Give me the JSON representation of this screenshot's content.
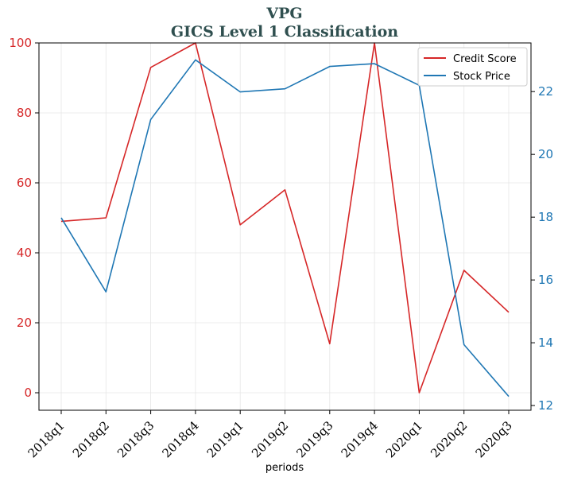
{
  "chart_data": {
    "type": "line",
    "title": "VPG",
    "subtitle": "GICS Level 1 Classification",
    "xlabel": "periods",
    "ylabel_left": "",
    "ylabel_right": "",
    "categories": [
      "2018q1",
      "2018q2",
      "2018q3",
      "2018q4",
      "2019q1",
      "2019q2",
      "2019q3",
      "2019q4",
      "2020q1",
      "2020q2",
      "2020q3"
    ],
    "y_left": {
      "ylim": [
        -5,
        100
      ],
      "ticks": [
        "0",
        "20",
        "40",
        "60",
        "80",
        "100"
      ],
      "color": "#d62728"
    },
    "y_right": {
      "ylim": [
        11.85,
        23.55
      ],
      "ticks": [
        "12",
        "14",
        "16",
        "18",
        "20",
        "22"
      ],
      "color": "#1f77b4"
    },
    "grid": true,
    "legend_position": "top-right",
    "series": [
      {
        "name": "Credit Score",
        "axis": "left",
        "color": "#d62728",
        "values": [
          49,
          50,
          93,
          100,
          48,
          58,
          14,
          100,
          0,
          35,
          23
        ]
      },
      {
        "name": "Stock Price",
        "axis": "right",
        "color": "#1f77b4",
        "values": [
          17.98,
          15.62,
          21.11,
          23.01,
          21.99,
          22.09,
          22.8,
          22.89,
          22.2,
          13.94,
          12.29
        ]
      }
    ]
  }
}
